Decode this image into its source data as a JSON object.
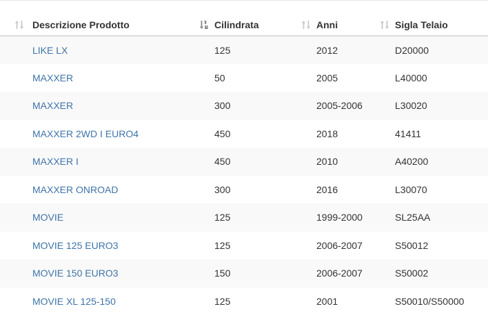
{
  "table": {
    "columns": [
      {
        "label": "Descrizione Prodotto",
        "sort_icon": "sort-both-icon"
      },
      {
        "label": "Cilindrata",
        "sort_icon": "sort-numeric-ascending-icon"
      },
      {
        "label": "Anni",
        "sort_icon": "sort-both-icon"
      },
      {
        "label": "Sigla Telaio",
        "sort_icon": "sort-both-icon"
      }
    ],
    "rows": [
      {
        "descrizione": "LIKE LX",
        "cilindrata": "125",
        "anni": "2012",
        "sigla": "D20000"
      },
      {
        "descrizione": "MAXXER",
        "cilindrata": "50",
        "anni": "2005",
        "sigla": "L40000"
      },
      {
        "descrizione": "MAXXER",
        "cilindrata": "300",
        "anni": "2005-2006",
        "sigla": "L30020"
      },
      {
        "descrizione": "MAXXER 2WD I EURO4",
        "cilindrata": "450",
        "anni": "2018",
        "sigla": "41411"
      },
      {
        "descrizione": "MAXXER I",
        "cilindrata": "450",
        "anni": "2010",
        "sigla": "A40200"
      },
      {
        "descrizione": "MAXXER ONROAD",
        "cilindrata": "300",
        "anni": "2016",
        "sigla": "L30070"
      },
      {
        "descrizione": "MOVIE",
        "cilindrata": "125",
        "anni": "1999-2000",
        "sigla": "SL25AA"
      },
      {
        "descrizione": "MOVIE 125 EURO3",
        "cilindrata": "125",
        "anni": "2006-2007",
        "sigla": "S50012"
      },
      {
        "descrizione": "MOVIE 150 EURO3",
        "cilindrata": "150",
        "anni": "2006-2007",
        "sigla": "S50002"
      },
      {
        "descrizione": "MOVIE XL 125-150",
        "cilindrata": "125",
        "anni": "2001",
        "sigla": "S50010/S50000"
      }
    ]
  },
  "colors": {
    "link": "#3e74a8",
    "text": "#333333",
    "stripe": "#f9f9f9",
    "header_border": "#dddddd",
    "icon_muted": "#c8c8c8",
    "icon_active": "#888888"
  }
}
